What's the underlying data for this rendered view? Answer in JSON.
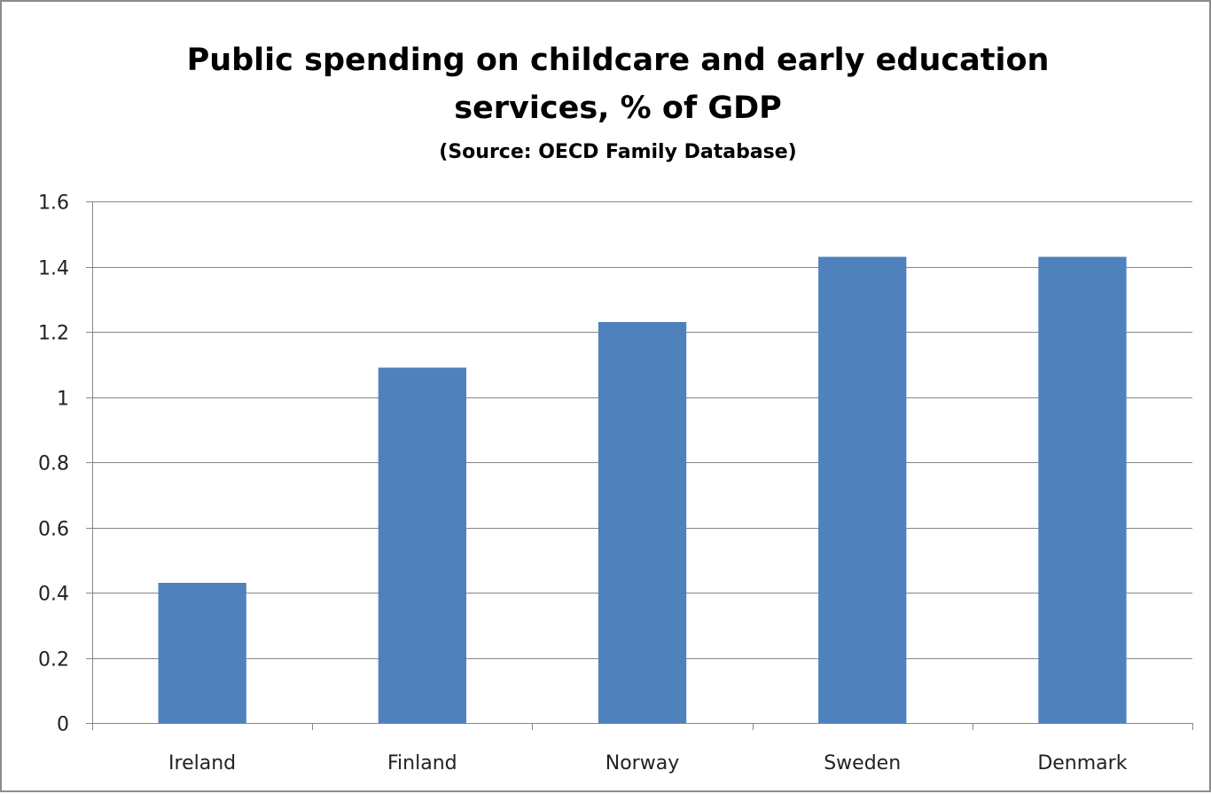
{
  "chart_data": {
    "type": "bar",
    "title": "Public spending on childcare and early education services, % of GDP",
    "title_lines": [
      "Public spending on childcare and early education",
      "services, % of GDP"
    ],
    "subtitle": "(Source: OECD Family Database)",
    "xlabel": "",
    "ylabel": "",
    "categories": [
      "Ireland",
      "Finland",
      "Norway",
      "Sweden",
      "Denmark"
    ],
    "values": [
      0.43,
      1.09,
      1.23,
      1.43,
      1.43
    ],
    "ylim": [
      0,
      1.6
    ],
    "yticks": [
      0,
      0.2,
      0.4,
      0.6,
      0.8,
      1,
      1.2,
      1.4,
      1.6
    ],
    "ytick_labels": [
      "0",
      "0.2",
      "0.4",
      "0.6",
      "0.8",
      "1",
      "1.2",
      "1.4",
      "1.6"
    ],
    "grid": true,
    "legend": "none",
    "bar_color": "#4f81bd",
    "grid_color": "#878787"
  }
}
